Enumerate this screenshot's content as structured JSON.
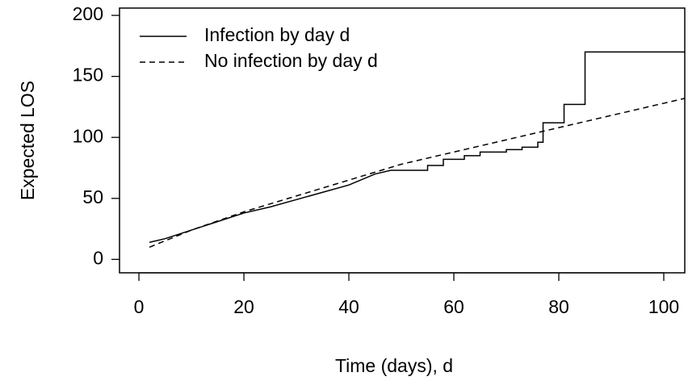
{
  "chart_data": {
    "type": "line",
    "x_label": "Time (days), d",
    "y_label": "Expected LOS",
    "xlim": [
      -3.7,
      104
    ],
    "ylim": [
      -11,
      206
    ],
    "xticks": [
      0,
      20,
      40,
      60,
      80,
      100
    ],
    "yticks": [
      0,
      50,
      100,
      150,
      200
    ],
    "legend": "top-left",
    "series": [
      {
        "name": "Infection by day d",
        "color": "#000000",
        "dash": "solid",
        "x": [
          2,
          5,
          10,
          15,
          20,
          25,
          30,
          35,
          40,
          45,
          48,
          55,
          55,
          58,
          58,
          62,
          62,
          65,
          65,
          70,
          70,
          73,
          73,
          76,
          76,
          77,
          77,
          81,
          81,
          85,
          85,
          104
        ],
        "values": [
          14,
          17,
          24,
          31,
          38,
          43,
          49,
          55,
          61,
          70,
          73,
          73,
          77,
          77,
          82,
          82,
          85,
          85,
          88,
          88,
          90,
          90,
          92,
          92,
          96,
          96,
          112,
          112,
          127,
          127,
          170,
          170
        ]
      },
      {
        "name": "No infection by day d",
        "color": "#000000",
        "dash": "dashed",
        "x": [
          2,
          10,
          20,
          30,
          40,
          50,
          60,
          70,
          80,
          90,
          104
        ],
        "values": [
          10,
          24,
          39,
          52,
          65,
          78,
          88,
          98,
          108,
          118,
          132
        ]
      }
    ]
  }
}
